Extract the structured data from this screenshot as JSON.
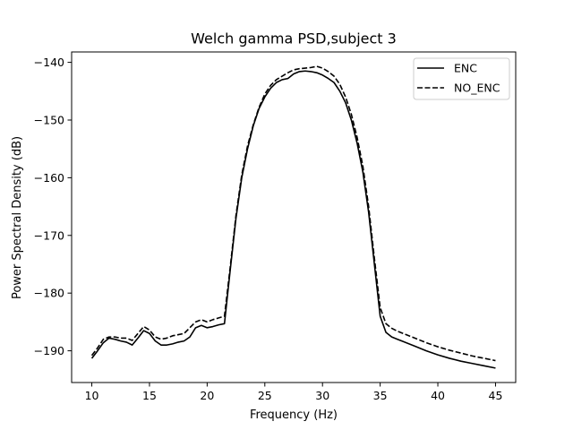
{
  "chart_data": {
    "type": "line",
    "title": "Welch gamma PSD,subject 3",
    "xlabel": "Frequency (Hz)",
    "ylabel": "Power Spectral Density (dB)",
    "xlim": [
      8.25,
      46.75
    ],
    "ylim": [
      -195.5,
      -138.2
    ],
    "xticks": [
      10,
      15,
      20,
      25,
      30,
      35,
      40,
      45
    ],
    "yticks": [
      -190,
      -180,
      -170,
      -160,
      -150,
      -140
    ],
    "xtick_labels": [
      "10",
      "15",
      "20",
      "25",
      "30",
      "35",
      "40",
      "45"
    ],
    "ytick_labels": [
      "−190",
      "−180",
      "−170",
      "−160",
      "−150",
      "−140"
    ],
    "grid": false,
    "legend_position": "top-right",
    "series": [
      {
        "name": "ENC",
        "style": "solid",
        "color": "#000000",
        "x": [
          10,
          10.5,
          11,
          11.5,
          12,
          12.5,
          13,
          13.5,
          14,
          14.5,
          15,
          15.5,
          16,
          16.5,
          17,
          17.5,
          18,
          18.5,
          19,
          19.5,
          20,
          20.5,
          21,
          21.5,
          22,
          22.5,
          23,
          23.5,
          24,
          24.5,
          25,
          25.5,
          26,
          26.5,
          27,
          27.5,
          28,
          28.5,
          29,
          29.5,
          30,
          30.5,
          31,
          31.5,
          32,
          32.5,
          33,
          33.5,
          34,
          34.5,
          35,
          35.5,
          36,
          36.5,
          37,
          38,
          39,
          40,
          41,
          42,
          43,
          44,
          45
        ],
        "y": [
          -191.3,
          -190.0,
          -188.6,
          -187.8,
          -188.0,
          -188.3,
          -188.5,
          -189.0,
          -187.8,
          -186.5,
          -187.0,
          -188.3,
          -189.0,
          -189.0,
          -188.8,
          -188.5,
          -188.3,
          -187.6,
          -186.0,
          -185.6,
          -186.0,
          -185.8,
          -185.5,
          -185.3,
          -176.0,
          -167.0,
          -160.0,
          -155.0,
          -151.0,
          -148.0,
          -146.0,
          -144.5,
          -143.5,
          -143.0,
          -142.8,
          -142.0,
          -141.6,
          -141.5,
          -141.6,
          -141.8,
          -142.2,
          -142.8,
          -143.5,
          -145.0,
          -147.0,
          -150.0,
          -154.0,
          -159.0,
          -166.0,
          -175.0,
          -184.0,
          -186.8,
          -187.6,
          -188.0,
          -188.4,
          -189.2,
          -190.0,
          -190.7,
          -191.3,
          -191.8,
          -192.2,
          -192.6,
          -193.0
        ]
      },
      {
        "name": "NO_ENC",
        "style": "dashed",
        "color": "#000000",
        "x": [
          10,
          10.5,
          11,
          11.5,
          12,
          12.5,
          13,
          13.5,
          14,
          14.5,
          15,
          15.5,
          16,
          16.5,
          17,
          17.5,
          18,
          18.5,
          19,
          19.5,
          20,
          20.5,
          21,
          21.5,
          22,
          22.5,
          23,
          23.5,
          24,
          24.5,
          25,
          25.5,
          26,
          26.5,
          27,
          27.5,
          28,
          28.5,
          29,
          29.5,
          30,
          30.5,
          31,
          31.5,
          32,
          32.5,
          33,
          33.5,
          34,
          34.5,
          35,
          35.5,
          36,
          36.5,
          37,
          38,
          39,
          40,
          41,
          42,
          43,
          44,
          45
        ],
        "y": [
          -190.8,
          -189.5,
          -188.0,
          -187.6,
          -187.6,
          -187.8,
          -187.8,
          -188.2,
          -187.0,
          -185.8,
          -186.4,
          -187.6,
          -188.0,
          -187.8,
          -187.4,
          -187.2,
          -187.0,
          -186.0,
          -185.0,
          -184.6,
          -185.0,
          -184.6,
          -184.3,
          -184.0,
          -175.5,
          -166.5,
          -159.5,
          -154.5,
          -150.8,
          -147.8,
          -145.5,
          -144.0,
          -143.0,
          -142.4,
          -141.8,
          -141.3,
          -141.1,
          -141.0,
          -140.9,
          -140.7,
          -141.0,
          -141.6,
          -142.4,
          -143.8,
          -146.0,
          -149.0,
          -153.0,
          -158.0,
          -165.0,
          -174.0,
          -182.5,
          -185.3,
          -186.1,
          -186.6,
          -187.0,
          -187.8,
          -188.6,
          -189.3,
          -189.9,
          -190.4,
          -190.9,
          -191.3,
          -191.7
        ]
      }
    ]
  }
}
